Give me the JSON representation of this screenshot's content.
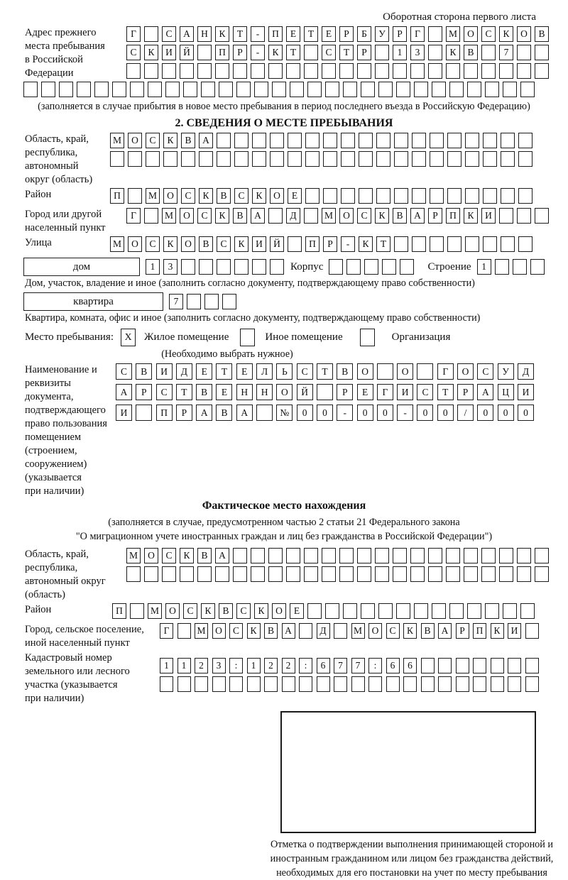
{
  "page": {
    "corner_note": "Оборотная сторона первого листа"
  },
  "prev_address": {
    "label": "Адрес прежнего\nместа пребывания\nв Российской\nФедерации",
    "rows": [
      [
        "Г",
        "",
        "С",
        "А",
        "Н",
        "К",
        "Т",
        "-",
        "П",
        "Е",
        "Т",
        "Е",
        "Р",
        "Б",
        "У",
        "Р",
        "Г",
        "",
        "М",
        "О",
        "С",
        "К",
        "О",
        "В"
      ],
      [
        "С",
        "К",
        "И",
        "Й",
        "",
        "П",
        "Р",
        "-",
        "К",
        "Т",
        "",
        "С",
        "Т",
        "Р",
        "",
        "1",
        "3",
        "",
        "К",
        "В",
        "",
        "7",
        "",
        ""
      ],
      [
        "",
        "",
        "",
        "",
        "",
        "",
        "",
        "",
        "",
        "",
        "",
        "",
        "",
        "",
        "",
        "",
        "",
        "",
        "",
        "",
        "",
        "",
        "",
        ""
      ]
    ],
    "row_full": [
      "",
      "",
      "",
      "",
      "",
      "",
      "",
      "",
      "",
      "",
      "",
      "",
      "",
      "",
      "",
      "",
      "",
      "",
      "",
      "",
      "",
      "",
      "",
      "",
      "",
      "",
      "",
      "",
      ""
    ],
    "note": "(заполняется в случае прибытия в новое место пребывания в период последнего въезда в Российскую Федерацию)"
  },
  "section2": {
    "title": "2. СВЕДЕНИЯ О МЕСТЕ ПРЕБЫВАНИЯ",
    "region": {
      "label": "Область, край,\nреспублика,\nавтономный\nокруг (область)",
      "rows": [
        [
          "М",
          "О",
          "С",
          "К",
          "В",
          "А",
          "",
          "",
          "",
          "",
          "",
          "",
          "",
          "",
          "",
          "",
          "",
          "",
          "",
          "",
          "",
          "",
          "",
          ""
        ],
        [
          "",
          "",
          "",
          "",
          "",
          "",
          "",
          "",
          "",
          "",
          "",
          "",
          "",
          "",
          "",
          "",
          "",
          "",
          "",
          "",
          "",
          "",
          "",
          ""
        ]
      ]
    },
    "district": {
      "label": "Район",
      "cells": [
        "П",
        "",
        "М",
        "О",
        "С",
        "К",
        "В",
        "С",
        "К",
        "О",
        "Е",
        "",
        "",
        "",
        "",
        "",
        "",
        "",
        "",
        "",
        "",
        "",
        "",
        ""
      ]
    },
    "city": {
      "label": "Город или другой\nнаселенный пункт",
      "cells": [
        "Г",
        "",
        "М",
        "О",
        "С",
        "К",
        "В",
        "А",
        "",
        "Д",
        "",
        "М",
        "О",
        "С",
        "К",
        "В",
        "А",
        "Р",
        "П",
        "К",
        "И",
        "",
        "",
        ""
      ]
    },
    "street": {
      "label": "Улица",
      "cells": [
        "М",
        "О",
        "С",
        "К",
        "О",
        "В",
        "С",
        "К",
        "И",
        "Й",
        "",
        "П",
        "Р",
        "-",
        "К",
        "Т",
        "",
        "",
        "",
        "",
        "",
        "",
        "",
        ""
      ]
    },
    "house": {
      "label": "дом",
      "num": [
        "1",
        "3",
        "",
        "",
        "",
        "",
        "",
        ""
      ],
      "corpus_label": "Корпус",
      "corpus": [
        "",
        "",
        "",
        "",
        ""
      ],
      "stroenie_label": "Строение",
      "stroenie": [
        "1",
        "",
        "",
        ""
      ]
    },
    "house_note": "Дом, участок, владение и иное (заполнить согласно документу, подтверждающему право собственности)",
    "apartment": {
      "label": "квартира",
      "num": [
        "7",
        "",
        "",
        ""
      ]
    },
    "apartment_note": "Квартира, комната, офис и иное (заполнить согласно документу, подтверждающему право собственности)",
    "stay_type": {
      "label": "Место пребывания:",
      "options": [
        {
          "label": "Жилое помещение",
          "checked": "X"
        },
        {
          "label": "Иное помещение",
          "checked": ""
        },
        {
          "label": "Организация",
          "checked": ""
        }
      ],
      "note": "(Необходимо выбрать нужное)"
    },
    "document": {
      "label": "Наименование и реквизиты\nдокумента, подтверждающего\nправо пользования\nпомещением (строением,\nсооружением) (указывается\nпри наличии)",
      "rows": [
        [
          "С",
          "В",
          "И",
          "Д",
          "Е",
          "Т",
          "Е",
          "Л",
          "Ь",
          "С",
          "Т",
          "В",
          "О",
          "",
          "О",
          "",
          "Г",
          "О",
          "С",
          "У",
          "Д"
        ],
        [
          "А",
          "Р",
          "С",
          "Т",
          "В",
          "Е",
          "Н",
          "Н",
          "О",
          "Й",
          "",
          "Р",
          "Е",
          "Г",
          "И",
          "С",
          "Т",
          "Р",
          "А",
          "Ц",
          "И"
        ],
        [
          "И",
          "",
          "П",
          "Р",
          "А",
          "В",
          "А",
          "",
          "№",
          "0",
          "0",
          "-",
          "0",
          "0",
          "-",
          "0",
          "0",
          "/",
          "0",
          "0",
          "0"
        ]
      ]
    }
  },
  "actual_location": {
    "title": "Фактическое место нахождения",
    "note_line1": "(заполняется в случае, предусмотренном частью 2 статьи 21 Федерального закона",
    "note_line2": "\"О миграционном учете иностранных граждан и лиц без гражданства в Российской Федерации\")",
    "region": {
      "label": "Область, край,\nреспублика,\nавтономный округ\n(область)",
      "rows": [
        [
          "М",
          "О",
          "С",
          "К",
          "В",
          "А",
          "",
          "",
          "",
          "",
          "",
          "",
          "",
          "",
          "",
          "",
          "",
          "",
          "",
          "",
          "",
          "",
          "",
          ""
        ],
        [
          "",
          "",
          "",
          "",
          "",
          "",
          "",
          "",
          "",
          "",
          "",
          "",
          "",
          "",
          "",
          "",
          "",
          "",
          "",
          "",
          "",
          "",
          "",
          ""
        ]
      ]
    },
    "district": {
      "label": "Район",
      "cells": [
        "П",
        "",
        "М",
        "О",
        "С",
        "К",
        "В",
        "С",
        "К",
        "О",
        "Е",
        "",
        "",
        "",
        "",
        "",
        "",
        "",
        "",
        "",
        "",
        "",
        "",
        ""
      ]
    },
    "city": {
      "label": "Город, сельское поселение,\nиной населенный пункт",
      "cells": [
        "Г",
        "",
        "М",
        "О",
        "С",
        "К",
        "В",
        "А",
        "",
        "Д",
        "",
        "М",
        "О",
        "С",
        "К",
        "В",
        "А",
        "Р",
        "П",
        "К",
        "И",
        ""
      ]
    },
    "cadastral": {
      "label": "Кадастровый номер\nземельного или лесного\nучастка (указывается\nпри наличии)",
      "rows": [
        [
          "1",
          "1",
          "2",
          "3",
          ":",
          "1",
          "2",
          "2",
          ":",
          "6",
          "7",
          "7",
          ":",
          "6",
          "6",
          "",
          "",
          "",
          "",
          "",
          "",
          ""
        ],
        [
          "",
          "",
          "",
          "",
          "",
          "",
          "",
          "",
          "",
          "",
          "",
          "",
          "",
          "",
          "",
          "",
          "",
          "",
          "",
          "",
          "",
          ""
        ]
      ]
    },
    "stamp_caption": "Отметка о подтверждении выполнения принимающей стороной и иностранным гражданином или лицом без гражданства действий, необходимых для его постановки на учет по месту пребывания"
  }
}
